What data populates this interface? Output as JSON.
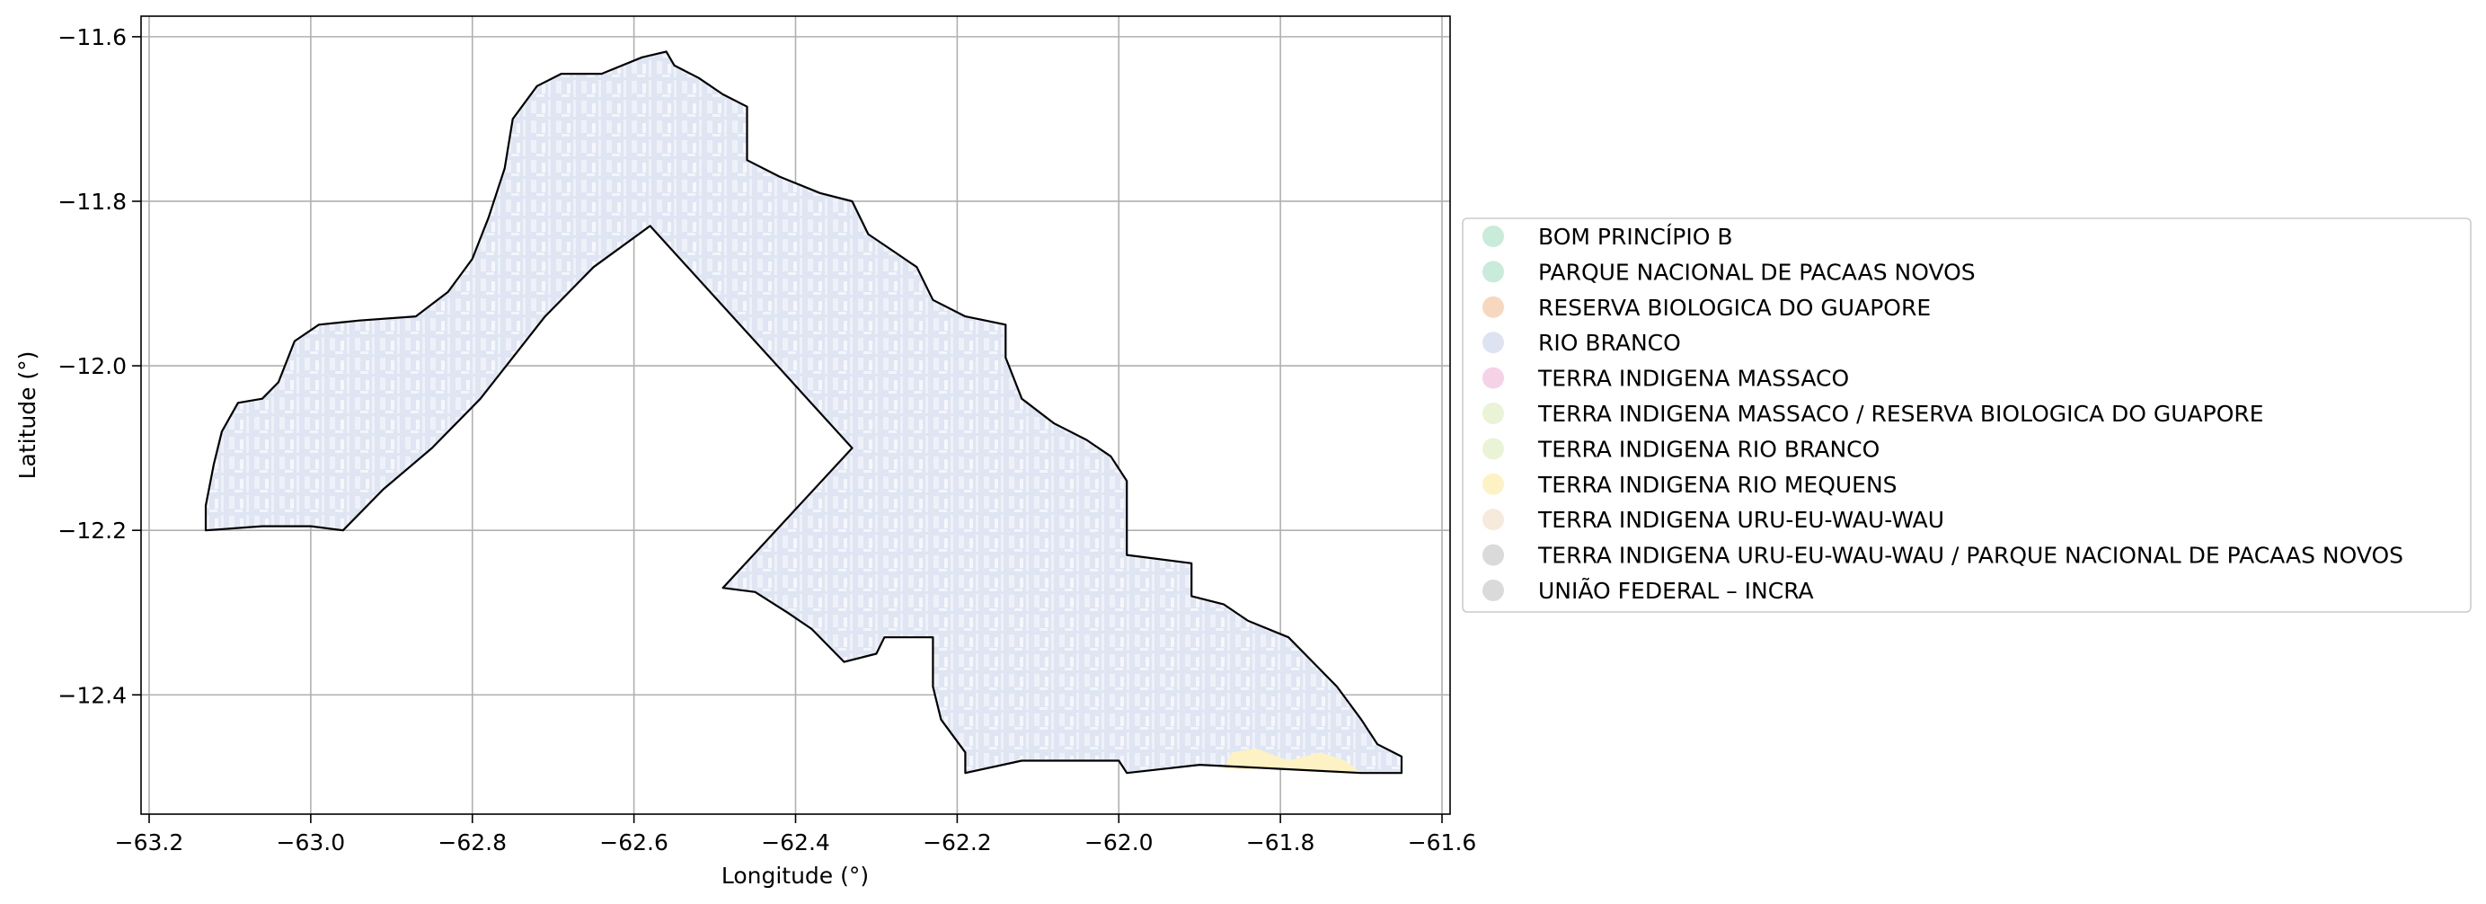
{
  "chart_data": {
    "type": "map",
    "xlabel": "Longitude (°)",
    "ylabel": "Latitude (°)",
    "xlim": [
      -63.21,
      -61.59
    ],
    "ylim": [
      -12.545,
      -11.575
    ],
    "grid": true,
    "x_ticks": [
      -63.2,
      -63.0,
      -62.8,
      -62.6,
      -62.4,
      -62.2,
      -62.0,
      -61.8,
      -61.6
    ],
    "x_tick_labels": [
      "−63.2",
      "−63.0",
      "−62.8",
      "−62.6",
      "−62.4",
      "−62.2",
      "−62.0",
      "−61.8",
      "−61.6"
    ],
    "y_ticks": [
      -11.6,
      -11.8,
      -12.0,
      -12.2,
      -12.4
    ],
    "y_tick_labels": [
      "−11.6",
      "−11.8",
      "−12.0",
      "−12.2",
      "−12.4"
    ],
    "legend_position": "right",
    "legend": [
      {
        "label": "BOM PRINCÍPIO B",
        "color": "#c9ebd9"
      },
      {
        "label": "PARQUE NACIONAL DE PACAAS NOVOS",
        "color": "#c9ebd9"
      },
      {
        "label": "RESERVA BIOLOGICA DO GUAPORE",
        "color": "#f7d8bf"
      },
      {
        "label": "RIO BRANCO",
        "color": "#dde3f1"
      },
      {
        "label": "TERRA INDIGENA MASSACO",
        "color": "#f5d2e8"
      },
      {
        "label": "TERRA INDIGENA MASSACO / RESERVA BIOLOGICA DO GUAPORE",
        "color": "#e9f4d6"
      },
      {
        "label": "TERRA INDIGENA RIO BRANCO",
        "color": "#e9f4d6"
      },
      {
        "label": "TERRA INDIGENA RIO MEQUENS",
        "color": "#fdf2c4"
      },
      {
        "label": "TERRA INDIGENA URU-EU-WAU-WAU",
        "color": "#f5eadb"
      },
      {
        "label": "TERRA INDIGENA URU-EU-WAU-WAU / PARQUE NACIONAL DE PACAAS NOVOS",
        "color": "#dadada"
      },
      {
        "label": "UNIÃO FEDERAL – INCRA",
        "color": "#dadada"
      }
    ],
    "boundary": [
      [
        -63.13,
        -12.2
      ],
      [
        -63.13,
        -12.17
      ],
      [
        -63.12,
        -12.12
      ],
      [
        -63.11,
        -12.08
      ],
      [
        -63.09,
        -12.045
      ],
      [
        -63.06,
        -12.04
      ],
      [
        -63.04,
        -12.02
      ],
      [
        -63.02,
        -11.97
      ],
      [
        -62.99,
        -11.95
      ],
      [
        -62.94,
        -11.945
      ],
      [
        -62.87,
        -11.94
      ],
      [
        -62.83,
        -11.91
      ],
      [
        -62.8,
        -11.87
      ],
      [
        -62.78,
        -11.82
      ],
      [
        -62.76,
        -11.76
      ],
      [
        -62.75,
        -11.7
      ],
      [
        -62.72,
        -11.66
      ],
      [
        -62.69,
        -11.645
      ],
      [
        -62.64,
        -11.645
      ],
      [
        -62.59,
        -11.625
      ],
      [
        -62.56,
        -11.618
      ],
      [
        -62.55,
        -11.635
      ],
      [
        -62.52,
        -11.65
      ],
      [
        -62.49,
        -11.67
      ],
      [
        -62.46,
        -11.685
      ],
      [
        -62.46,
        -11.75
      ],
      [
        -62.42,
        -11.77
      ],
      [
        -62.37,
        -11.79
      ],
      [
        -62.33,
        -11.8
      ],
      [
        -62.31,
        -11.84
      ],
      [
        -62.28,
        -11.86
      ],
      [
        -62.25,
        -11.88
      ],
      [
        -62.23,
        -11.92
      ],
      [
        -62.19,
        -11.94
      ],
      [
        -62.14,
        -11.95
      ],
      [
        -62.14,
        -11.99
      ],
      [
        -62.12,
        -12.04
      ],
      [
        -62.08,
        -12.07
      ],
      [
        -62.04,
        -12.09
      ],
      [
        -62.01,
        -12.11
      ],
      [
        -61.99,
        -12.14
      ],
      [
        -61.99,
        -12.23
      ],
      [
        -61.91,
        -12.24
      ],
      [
        -61.91,
        -12.28
      ],
      [
        -61.87,
        -12.29
      ],
      [
        -61.84,
        -12.31
      ],
      [
        -61.79,
        -12.33
      ],
      [
        -61.76,
        -12.36
      ],
      [
        -61.73,
        -12.39
      ],
      [
        -61.7,
        -12.43
      ],
      [
        -61.68,
        -12.46
      ],
      [
        -61.65,
        -12.475
      ],
      [
        -61.65,
        -12.495
      ],
      [
        -61.7,
        -12.495
      ],
      [
        -61.8,
        -12.49
      ],
      [
        -61.9,
        -12.485
      ],
      [
        -61.99,
        -12.495
      ],
      [
        -62.0,
        -12.48
      ],
      [
        -62.12,
        -12.48
      ],
      [
        -62.19,
        -12.495
      ],
      [
        -62.19,
        -12.47
      ],
      [
        -62.22,
        -12.43
      ],
      [
        -62.23,
        -12.39
      ],
      [
        -62.23,
        -12.33
      ],
      [
        -62.29,
        -12.33
      ],
      [
        -62.3,
        -12.35
      ],
      [
        -62.34,
        -12.36
      ],
      [
        -62.38,
        -12.32
      ],
      [
        -62.41,
        -12.3
      ],
      [
        -62.45,
        -12.275
      ],
      [
        -62.49,
        -12.27
      ],
      [
        -62.33,
        -12.1
      ],
      [
        -62.58,
        -11.83
      ],
      [
        -62.65,
        -11.88
      ],
      [
        -62.71,
        -11.94
      ],
      [
        -62.79,
        -12.04
      ],
      [
        -62.85,
        -12.1
      ],
      [
        -62.91,
        -12.15
      ],
      [
        -62.96,
        -12.2
      ],
      [
        -63.0,
        -12.195
      ],
      [
        -63.06,
        -12.195
      ],
      [
        -63.13,
        -12.2
      ]
    ],
    "overlays": [
      {
        "label": "TERRA INDIGENA RIO MEQUENS",
        "color": "#fdf2c4",
        "polygon": [
          [
            -61.87,
            -12.49
          ],
          [
            -61.86,
            -12.47
          ],
          [
            -61.83,
            -12.465
          ],
          [
            -61.79,
            -12.48
          ],
          [
            -61.75,
            -12.47
          ],
          [
            -61.72,
            -12.48
          ],
          [
            -61.7,
            -12.495
          ],
          [
            -61.8,
            -12.49
          ]
        ]
      }
    ]
  }
}
